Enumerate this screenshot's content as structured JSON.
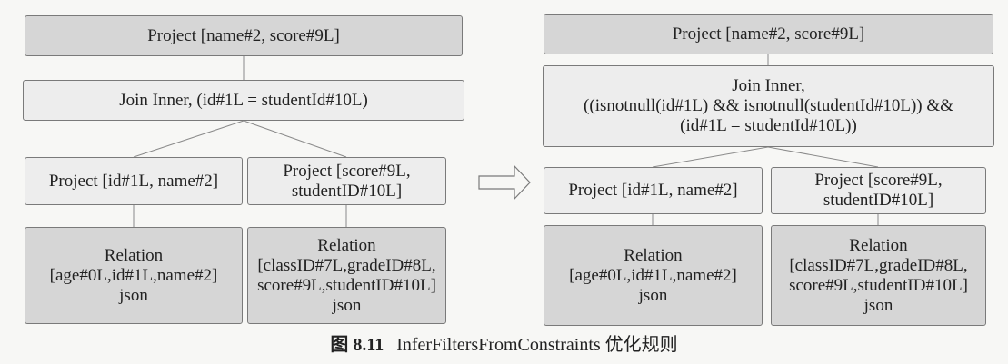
{
  "left_tree": {
    "project_top": "Project [name#2, score#9L]",
    "join": "Join Inner, (id#1L = studentId#10L)",
    "project_left": "Project [id#1L, name#2]",
    "project_right_l1": "Project [score#9L,",
    "project_right_l2": "studentID#10L]",
    "relation_left_l1": "Relation",
    "relation_left_l2": "[age#0L,id#1L,name#2]",
    "relation_left_l3": "json",
    "relation_right_l1": "Relation",
    "relation_right_l2": "[classID#7L,gradeID#8L,",
    "relation_right_l3": "score#9L,studentID#10L]",
    "relation_right_l4": "json"
  },
  "right_tree": {
    "project_top": "Project [name#2, score#9L]",
    "join_l1": "Join Inner,",
    "join_l2": "((isnotnull(id#1L) && isnotnull(studentId#10L)) &&",
    "join_l3": "(id#1L = studentId#10L))",
    "project_left": "Project [id#1L, name#2]",
    "project_right_l1": "Project [score#9L,",
    "project_right_l2": "studentID#10L]",
    "relation_left_l1": "Relation",
    "relation_left_l2": "[age#0L,id#1L,name#2]",
    "relation_left_l3": "json",
    "relation_right_l1": "Relation",
    "relation_right_l2": "[classID#7L,gradeID#8L,",
    "relation_right_l3": "score#9L,studentID#10L]",
    "relation_right_l4": "json"
  },
  "caption": {
    "figure_number": "图 8.11",
    "title": "InferFiltersFromConstraints 优化规则"
  },
  "colors": {
    "box_light": "#ededed",
    "box_dark": "#d6d6d6",
    "border": "#7a7a7a",
    "line": "#8a8a8a"
  }
}
